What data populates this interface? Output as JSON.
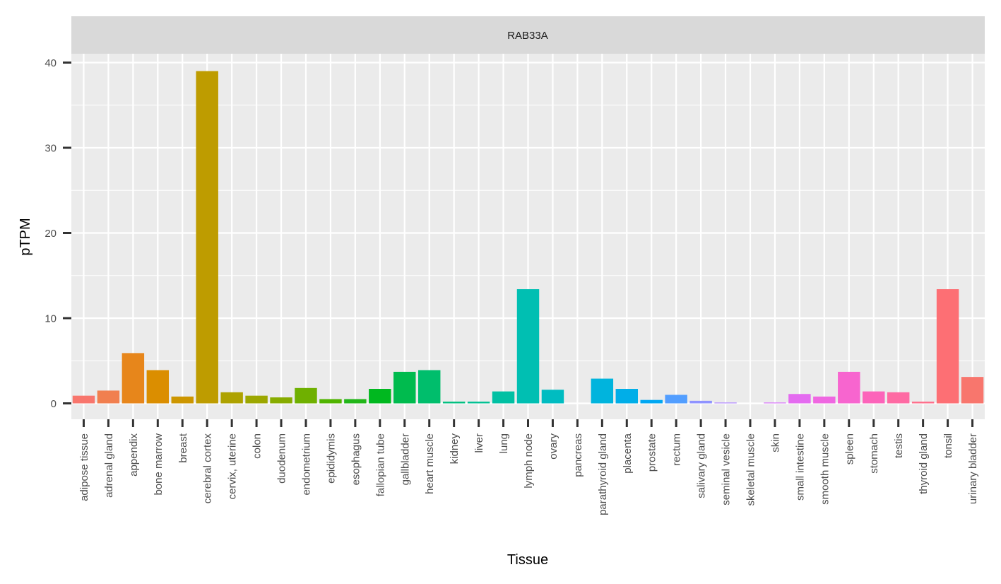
{
  "chart_data": {
    "type": "bar",
    "title": "",
    "facet_label": "RAB33A",
    "xlabel": "Tissue",
    "ylabel": "pTPM",
    "ylim": [
      -2,
      45
    ],
    "yticks": [
      0,
      10,
      20,
      30,
      40
    ],
    "grid": true,
    "legend": "none",
    "categories": [
      "adipose tissue",
      "adrenal gland",
      "appendix",
      "bone marrow",
      "breast",
      "cerebral cortex",
      "cervix, uterine",
      "colon",
      "duodenum",
      "endometrium",
      "epididymis",
      "esophagus",
      "fallopian tube",
      "gallbladder",
      "heart muscle",
      "kidney",
      "liver",
      "lung",
      "lymph node",
      "ovary",
      "pancreas",
      "parathyroid gland",
      "placenta",
      "prostate",
      "rectum",
      "salivary gland",
      "seminal vesicle",
      "skeletal muscle",
      "skin",
      "small intestine",
      "smooth muscle",
      "spleen",
      "stomach",
      "testis",
      "thyroid gland",
      "tonsil",
      "urinary bladder"
    ],
    "values": [
      0.9,
      1.5,
      5.9,
      3.9,
      0.8,
      39.0,
      1.3,
      0.9,
      0.7,
      1.8,
      0.5,
      0.5,
      1.7,
      3.7,
      3.9,
      0.2,
      0.2,
      1.4,
      13.4,
      1.6,
      0.0,
      2.9,
      1.7,
      0.4,
      1.0,
      0.3,
      0.1,
      0.0,
      0.1,
      1.1,
      0.8,
      3.7,
      1.4,
      1.3,
      0.2,
      13.4,
      3.1
    ],
    "colors": [
      "#F8766D",
      "#F17F4F",
      "#E7861B",
      "#DB8E00",
      "#CD9600",
      "#BE9C00",
      "#AEA200",
      "#9CA700",
      "#87AC00",
      "#6FB000",
      "#50B400",
      "#22B619",
      "#00B81F",
      "#00BB4E",
      "#00BE6C",
      "#00BF7F",
      "#00C092",
      "#00C0A3",
      "#00BFB2",
      "#00BCC1",
      "#00B9D0",
      "#00B4DD",
      "#00AEE8",
      "#00A7F2",
      "#529EFF",
      "#8F93FF",
      "#B087FF",
      "#C77CFF",
      "#D774FA",
      "#E46BF0",
      "#EF67E1",
      "#F765CF",
      "#FC64BA",
      "#FE6AA3",
      "#FE6E8A",
      "#FD6F74",
      "#F8766D"
    ]
  }
}
